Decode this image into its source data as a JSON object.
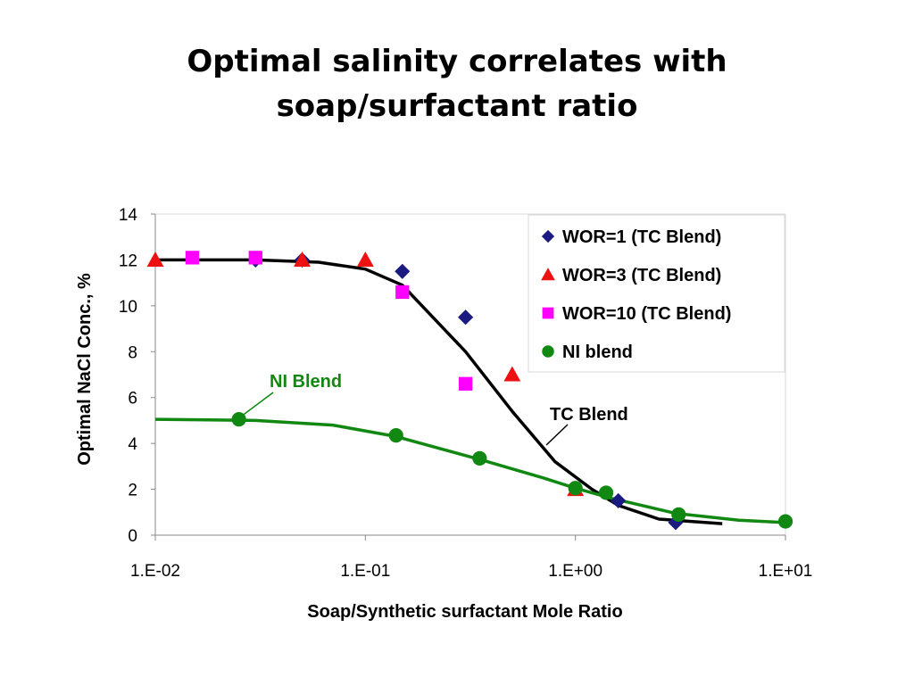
{
  "slide": {
    "title_line1": "Optimal salinity correlates with",
    "title_line2": "soap/surfactant ratio"
  },
  "chart_data": {
    "type": "scatter",
    "title": "",
    "xlabel": "Soap/Synthetic surfactant Mole Ratio",
    "ylabel": "Optimal NaCl Conc., %",
    "x_scale": "log",
    "xlim": [
      0.01,
      10
    ],
    "ylim": [
      0,
      14
    ],
    "x_ticks": [
      0.01,
      0.1,
      1,
      10
    ],
    "x_tick_labels": [
      "1.E-02",
      "1.E-01",
      "1.E+00",
      "1.E+01"
    ],
    "y_ticks": [
      0,
      2,
      4,
      6,
      8,
      10,
      12,
      14
    ],
    "y_tick_labels": [
      "0",
      "2",
      "4",
      "6",
      "8",
      "10",
      "12",
      "14"
    ],
    "grid": false,
    "legend_position": "top-right",
    "series": [
      {
        "name": "WOR=1  (TC Blend)",
        "marker": "diamond",
        "color": "#1a1a80",
        "x": [
          0.03,
          0.05,
          0.15,
          0.3,
          1.6,
          3.0
        ],
        "y": [
          12.0,
          12.0,
          11.5,
          9.5,
          1.5,
          0.55
        ]
      },
      {
        "name": "WOR=3  (TC Blend)",
        "marker": "triangle",
        "color": "#ee1111",
        "x": [
          0.01,
          0.05,
          0.1,
          0.5,
          1.0
        ],
        "y": [
          12.0,
          12.0,
          12.0,
          7.0,
          2.0
        ]
      },
      {
        "name": "WOR=10 (TC Blend)",
        "marker": "square",
        "color": "#ff00ff",
        "x": [
          0.015,
          0.03,
          0.15,
          0.3
        ],
        "y": [
          12.1,
          12.1,
          10.6,
          6.6
        ]
      },
      {
        "name": "NI blend",
        "marker": "circle",
        "color": "#118811",
        "x": [
          0.025,
          0.14,
          0.35,
          1.0,
          1.4,
          3.1,
          10.0
        ],
        "y": [
          5.05,
          4.35,
          3.35,
          2.05,
          1.85,
          0.9,
          0.6
        ]
      }
    ],
    "trend_lines": [
      {
        "label": "TC Blend",
        "color": "#000000",
        "x": [
          0.01,
          0.03,
          0.06,
          0.1,
          0.15,
          0.3,
          0.5,
          0.8,
          1.2,
          1.6,
          2.5,
          5.0
        ],
        "y": [
          12.0,
          12.0,
          11.9,
          11.6,
          10.9,
          8.0,
          5.4,
          3.2,
          2.0,
          1.3,
          0.7,
          0.5
        ]
      },
      {
        "label": "NI Blend",
        "color": "#118811",
        "x": [
          0.01,
          0.03,
          0.07,
          0.14,
          0.35,
          0.7,
          1.0,
          1.5,
          3.0,
          6.0,
          10.0
        ],
        "y": [
          5.05,
          5.0,
          4.8,
          4.3,
          3.3,
          2.5,
          2.05,
          1.6,
          0.95,
          0.65,
          0.55
        ]
      }
    ],
    "annotations": [
      {
        "text": "NI Blend",
        "color": "#118811"
      },
      {
        "text": "TC Blend",
        "color": "#000000"
      }
    ]
  }
}
